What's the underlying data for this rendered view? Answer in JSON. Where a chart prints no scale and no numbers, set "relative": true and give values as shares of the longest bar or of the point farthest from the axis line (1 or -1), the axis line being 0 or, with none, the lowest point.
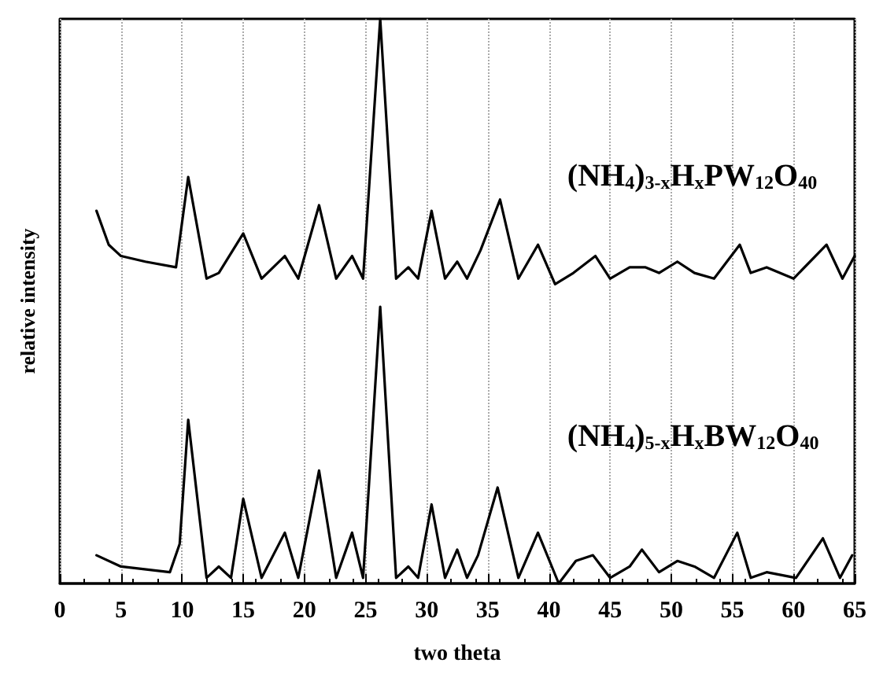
{
  "chart_data": {
    "type": "line",
    "relative": true,
    "xlabel": "two theta",
    "ylabel": "relative intensity",
    "xlim": [
      0,
      65
    ],
    "xticks": [
      0,
      5,
      10,
      15,
      20,
      25,
      30,
      35,
      40,
      45,
      50,
      55,
      60,
      65
    ],
    "tick_labels": "x",
    "grid": "x",
    "marker": "none",
    "line_style": "solid",
    "series": [
      {
        "name": "(NH$_{4}$)$_{3-x}$H$_{x}$PW$_{12}$O$_{40}$",
        "color": "#000000",
        "x": [
          3,
          4,
          5,
          7,
          9.5,
          10.5,
          12,
          13,
          15,
          16.5,
          18.4,
          19.5,
          21.2,
          22.6,
          23.9,
          24.8,
          26.2,
          27.5,
          28.5,
          29.3,
          30.4,
          31.5,
          32.5,
          33.3,
          34.4,
          36,
          37.5,
          39.1,
          40.5,
          42,
          43.8,
          45,
          46.6,
          47.9,
          49,
          50.5,
          51.9,
          53.5,
          55.6,
          56.5,
          57.8,
          60,
          62.7,
          64,
          65
        ],
        "values": [
          0.66,
          0.6,
          0.58,
          0.57,
          0.56,
          0.72,
          0.54,
          0.55,
          0.62,
          0.54,
          0.58,
          0.54,
          0.67,
          0.54,
          0.58,
          0.54,
          1,
          0.54,
          0.56,
          0.54,
          0.66,
          0.54,
          0.57,
          0.54,
          0.59,
          0.68,
          0.54,
          0.6,
          0.53,
          0.55,
          0.58,
          0.54,
          0.56,
          0.56,
          0.55,
          0.57,
          0.55,
          0.54,
          0.6,
          0.55,
          0.56,
          0.54,
          0.6,
          0.54,
          0.58
        ]
      },
      {
        "name": "(NH$_{4}$)$_{5-x}$H$_{x}$BW$_{12}$O$_{40}$",
        "color": "#000000",
        "x": [
          3,
          5,
          9,
          9.8,
          10.5,
          12,
          13,
          14,
          15,
          16.5,
          18.4,
          19.5,
          21.2,
          22.6,
          23.9,
          24.8,
          26.2,
          27.5,
          28.5,
          29.3,
          30.4,
          31.5,
          32.5,
          33.3,
          34.2,
          35.8,
          37.5,
          39.1,
          40.8,
          42.2,
          43.6,
          45,
          46.6,
          47.6,
          49,
          50.5,
          51.9,
          53.5,
          55.4,
          56.5,
          57.8,
          60.2,
          62.4,
          63.8,
          64.8
        ],
        "values": [
          0.05,
          0.03,
          0.02,
          0.07,
          0.29,
          0.01,
          0.03,
          0.01,
          0.15,
          0.01,
          0.09,
          0.01,
          0.2,
          0.01,
          0.09,
          0.01,
          0.49,
          0.01,
          0.03,
          0.01,
          0.14,
          0.01,
          0.06,
          0.01,
          0.05,
          0.17,
          0.01,
          0.09,
          0,
          0.04,
          0.05,
          0.01,
          0.03,
          0.06,
          0.02,
          0.04,
          0.03,
          0.01,
          0.09,
          0.01,
          0.02,
          0.01,
          0.08,
          0.01,
          0.05
        ]
      }
    ]
  }
}
